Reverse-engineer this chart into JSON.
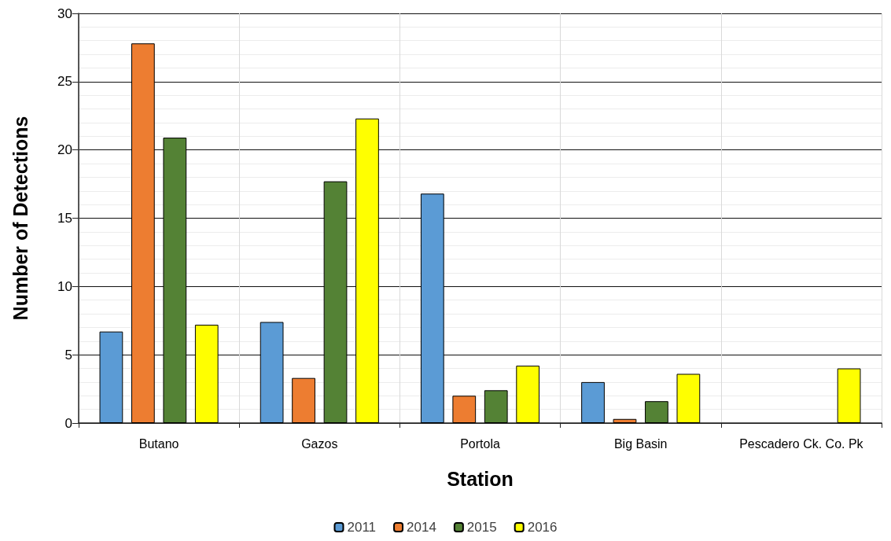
{
  "chart_data": {
    "type": "bar",
    "xlabel": "Station",
    "ylabel": "Number of Detections",
    "categories": [
      "Butano",
      "Gazos",
      "Portola",
      "Big Basin",
      "Pescadero Ck. Co. Pk"
    ],
    "series": [
      {
        "name": "2011",
        "color": "#5b9bd5",
        "values": [
          6.7,
          7.4,
          16.8,
          3.0,
          null
        ]
      },
      {
        "name": "2014",
        "color": "#ed7d31",
        "values": [
          27.8,
          3.3,
          2.0,
          0.3,
          null
        ]
      },
      {
        "name": "2015",
        "color": "#548235",
        "values": [
          20.9,
          17.7,
          2.4,
          1.6,
          null
        ]
      },
      {
        "name": "2016",
        "color": "#ffff00",
        "values": [
          7.2,
          22.3,
          4.2,
          3.6,
          4.0
        ]
      }
    ],
    "ylim": [
      0,
      30
    ],
    "yticks": [
      0,
      5,
      10,
      15,
      20,
      25,
      30
    ],
    "grid": true,
    "legend": "bottom"
  }
}
